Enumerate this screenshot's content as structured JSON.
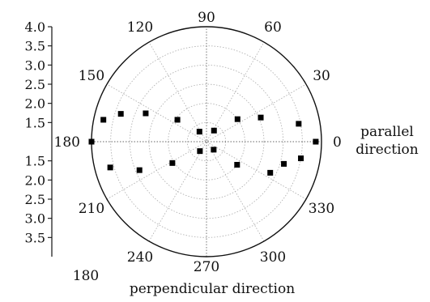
{
  "chart_data": {
    "type": "scatter",
    "subtype": "polar",
    "angle_unit": "degrees",
    "angle_labels": [
      "0",
      "30",
      "60",
      "90",
      "120",
      "150",
      "180",
      "210",
      "240",
      "270",
      "300",
      "330"
    ],
    "radial_ticks": [
      "4.0",
      "3.5",
      "3.0",
      "2.5",
      "2.0",
      "1.5",
      "1.5",
      "2.0",
      "2.5",
      "3.0",
      "3.5"
    ],
    "radial_tick_values": [
      4.0,
      3.5,
      3.0,
      2.5,
      2.0,
      1.5,
      1.5,
      2.0,
      2.5,
      3.0,
      3.5
    ],
    "rlim": [
      1.0,
      4.0
    ],
    "grid": true,
    "annotations": {
      "parallel_line1": "parallel",
      "parallel_line2": "direction",
      "perpendicular": "perpendicular direction",
      "bottom_left_180": "180"
    },
    "series": [
      {
        "marker": "square",
        "points": [
          {
            "theta": 0,
            "r": 3.85
          },
          {
            "theta": 11,
            "r": 3.45
          },
          {
            "theta": 24,
            "r": 2.55
          },
          {
            "theta": 36,
            "r": 2.0
          },
          {
            "theta": 56,
            "r": 1.35
          },
          {
            "theta": 125,
            "r": 1.32
          },
          {
            "theta": 143,
            "r": 1.95
          },
          {
            "theta": 155,
            "r": 2.75
          },
          {
            "theta": 162,
            "r": 3.35
          },
          {
            "theta": 168,
            "r": 3.75
          },
          {
            "theta": 180,
            "r": 4.0
          },
          {
            "theta": 195,
            "r": 3.6
          },
          {
            "theta": 203,
            "r": 2.9
          },
          {
            "theta": 212,
            "r": 2.05
          },
          {
            "theta": 235,
            "r": 1.3
          },
          {
            "theta": 312,
            "r": 1.28
          },
          {
            "theta": 323,
            "r": 2.0
          },
          {
            "theta": 334,
            "r": 2.85
          },
          {
            "theta": 344,
            "r": 3.1
          },
          {
            "theta": 350,
            "r": 3.5
          }
        ]
      }
    ]
  }
}
